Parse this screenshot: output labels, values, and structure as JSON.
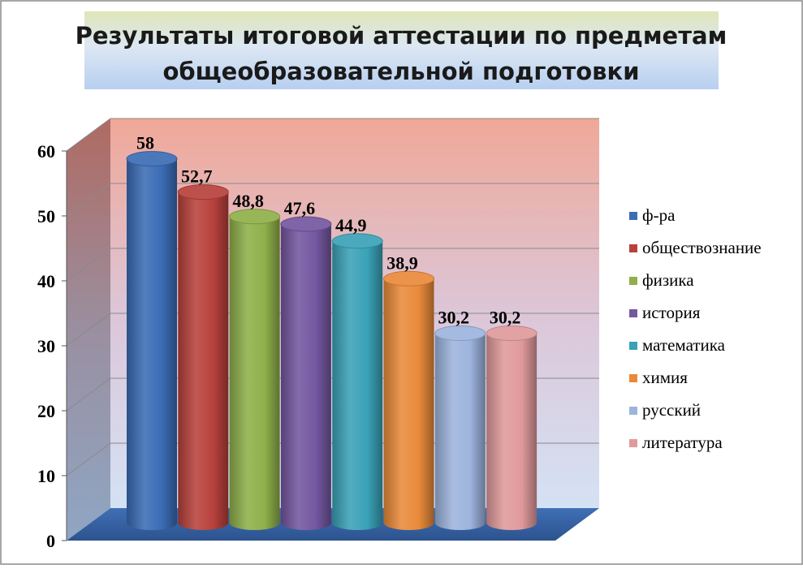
{
  "chart_data": {
    "type": "bar",
    "title_lines": [
      "Результаты итоговой аттестации по предметам",
      "общеобразовательной подготовки"
    ],
    "categories": [
      "ф-ра",
      "обществознание",
      "физика",
      "история",
      "математика",
      "химия",
      "русский",
      "литература"
    ],
    "values": [
      58,
      52.7,
      48.8,
      47.6,
      44.9,
      38.9,
      30.2,
      30.2
    ],
    "value_labels": [
      "58",
      "52,7",
      "48,8",
      "47,6",
      "44,9",
      "38,9",
      "30,2",
      "30,2"
    ],
    "colors": [
      "#3b6cb5",
      "#b8413c",
      "#8fb04a",
      "#7457a0",
      "#3aa2b7",
      "#e98a3a",
      "#9db4dd",
      "#e09a9c"
    ],
    "y_ticks": [
      "0",
      "10",
      "20",
      "30",
      "40",
      "50",
      "60"
    ],
    "ylim": [
      0,
      60
    ],
    "grid": true,
    "legend_position": "right",
    "xlabel": "",
    "ylabel": ""
  }
}
